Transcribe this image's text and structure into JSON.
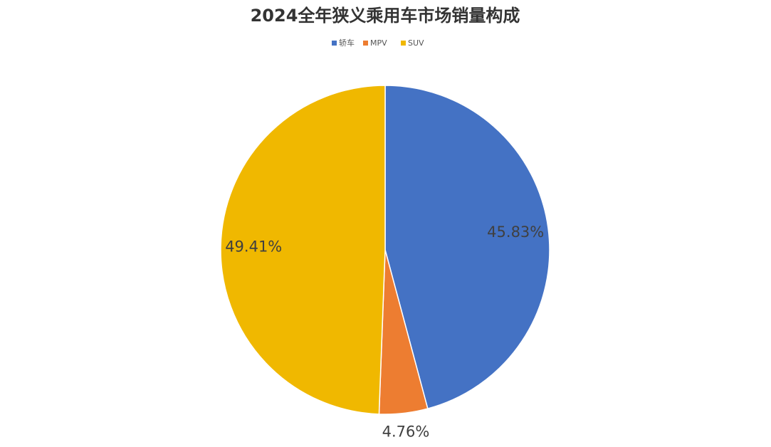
{
  "chart_data": {
    "type": "pie",
    "title": "2024全年狭义乘用车市场销量构成",
    "categories": [
      "轿车",
      "MPV",
      "SUV"
    ],
    "values": [
      45.83,
      4.76,
      49.41
    ],
    "value_labels": [
      "45.83%",
      "4.76%",
      "49.41%"
    ],
    "colors": [
      "#4472c4",
      "#ed7d31",
      "#f0b800"
    ],
    "legend": "top"
  }
}
